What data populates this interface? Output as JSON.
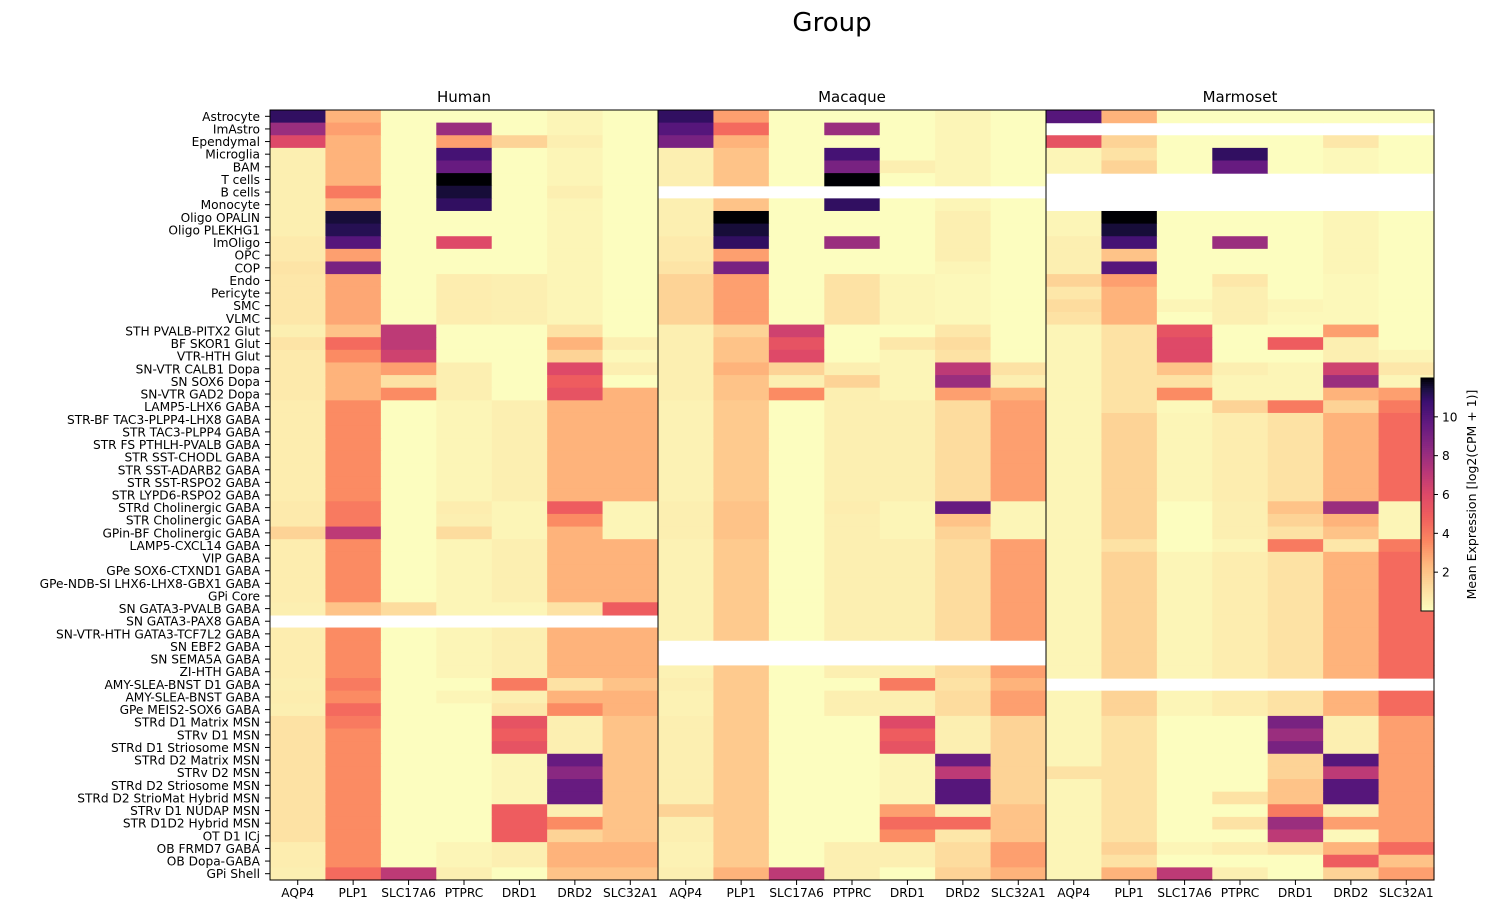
{
  "chart_data": {
    "type": "heatmap",
    "title": "Group",
    "panels": [
      "Human",
      "Macaque",
      "Marmoset"
    ],
    "genes": [
      "AQP4",
      "PLP1",
      "SLC17A6",
      "PTPRC",
      "DRD1",
      "DRD2",
      "SLC32A1"
    ],
    "cell_types": [
      "Astrocyte",
      "ImAstro",
      "Ependymal",
      "Microglia",
      "BAM",
      "T cells",
      "B cells",
      "Monocyte",
      "Oligo OPALIN",
      "Oligo PLEKHG1",
      "ImOligo",
      "OPC",
      "COP",
      "Endo",
      "Pericyte",
      "SMC",
      "VLMC",
      "STH PVALB-PITX2 Glut",
      "BF SKOR1 Glut",
      "VTR-HTH Glut",
      "SN-VTR CALB1 Dopa",
      "SN SOX6 Dopa",
      "SN-VTR GAD2 Dopa",
      "LAMP5-LHX6 GABA",
      "STR-BF TAC3-PLPP4-LHX8 GABA",
      "STR TAC3-PLPP4 GABA",
      "STR FS PTHLH-PVALB GABA",
      "STR SST-CHODL GABA",
      "STR SST-ADARB2 GABA",
      "STR SST-RSPO2 GABA",
      "STR LYPD6-RSPO2 GABA",
      "STRd Cholinergic GABA",
      "STR Cholinergic GABA",
      "GPin-BF Cholinergic GABA",
      "LAMP5-CXCL14 GABA",
      "VIP GABA",
      "GPe SOX6-CTXND1 GABA",
      "GPe-NDB-SI LHX6-LHX8-GBX1 GABA",
      "GPi Core",
      "SN GATA3-PVALB GABA",
      "SN GATA3-PAX8 GABA",
      "SN-VTR-HTH GATA3-TCF7L2 GABA",
      "SN EBF2 GABA",
      "SN SEMA5A GABA",
      "ZI-HTH GABA",
      "AMY-SLEA-BNST D1 GABA",
      "AMY-SLEA-BNST GABA",
      "GPe MEIS2-SOX6 GABA",
      "STRd D1 Matrix MSN",
      "STRv D1 MSN",
      "STRd D1 Striosome MSN",
      "STRd D2 Matrix MSN",
      "STRv D2 MSN",
      "STRd D2 Striosome MSN",
      "STRd D2 StrioMat Hybrid MSN",
      "STRv D1 NUDAP MSN",
      "STR D1D2 Hybrid MSN",
      "OT D1 ICj",
      "OB FRMD7 GABA",
      "OB Dopa-GABA",
      "GPi Shell"
    ],
    "missing_rows": {
      "Human": [
        "SN GATA3-PAX8 GABA"
      ],
      "Macaque": [
        "B cells",
        "SN EBF2 GABA",
        "SN SEMA5A GABA"
      ],
      "Marmoset": [
        "ImAstro",
        "T cells",
        "B cells",
        "Monocyte",
        "AMY-SLEA-BNST D1 GABA"
      ]
    },
    "colorbar": {
      "label": "Mean Expression [log2(CPM + 1)]",
      "ticks": [
        2,
        4,
        6,
        8,
        10
      ],
      "range": [
        0,
        12
      ],
      "colormap": "magma_r"
    },
    "overrides": {
      "Human": {
        "Astrocyte": [
          11,
          2.5,
          0,
          0,
          0,
          0.3,
          0
        ],
        "ImAstro": [
          8,
          3,
          0,
          8,
          0,
          0.3,
          0
        ],
        "Ependymal": [
          6,
          2.5,
          0,
          3,
          1.5,
          0.5,
          0
        ],
        "Microglia": [
          0.5,
          2.5,
          0,
          10.5,
          0,
          0.3,
          0
        ],
        "BAM": [
          0.5,
          2.5,
          0,
          9.5,
          0,
          0.3,
          0
        ],
        "T cells": [
          0.5,
          2.5,
          0,
          12,
          0,
          0.3,
          0
        ],
        "B cells": [
          0.5,
          4,
          0,
          11.5,
          0,
          0.5,
          0
        ],
        "Monocyte": [
          0.5,
          2.5,
          0,
          11,
          0,
          0.3,
          0
        ],
        "Oligo OPALIN": [
          0.5,
          11.5,
          0,
          0,
          0,
          0.3,
          0
        ],
        "Oligo PLEKHG1": [
          0.5,
          11.2,
          0,
          0,
          0,
          0.3,
          0
        ],
        "ImOligo": [
          0.7,
          10,
          0,
          6,
          0,
          0.3,
          0
        ],
        "OPC": [
          0.7,
          3,
          0,
          0,
          0,
          0.3,
          0
        ],
        "COP": [
          0.9,
          9,
          0,
          0,
          0,
          0.3,
          0
        ],
        "STH PVALB-PITX2 Glut": [
          0.5,
          2,
          7,
          0,
          0,
          1,
          0
        ],
        "BF SKOR1 Glut": [
          0.9,
          4.5,
          7,
          0,
          0,
          2.5,
          0.5
        ],
        "VTR-HTH Glut": [
          0.7,
          3.5,
          6.5,
          0,
          0,
          1.5,
          0.2
        ],
        "SN-VTR CALB1 Dopa": [
          0.7,
          2.5,
          3,
          0.5,
          0,
          6,
          0.5
        ],
        "SN SOX6 Dopa": [
          0.7,
          2.5,
          1,
          0.5,
          0,
          5,
          0
        ],
        "SN-VTR GAD2 Dopa": [
          0.7,
          2.5,
          3.5,
          0.5,
          0,
          5.5,
          2.5
        ],
        "STRd Cholinergic GABA": [
          0.7,
          4,
          0,
          0.6,
          0.3,
          5,
          0.3
        ],
        "STR Cholinergic GABA": [
          0.7,
          4,
          0,
          0.5,
          0.3,
          3.5,
          0.3
        ],
        "GPin-BF Cholinergic GABA": [
          1.5,
          7,
          0,
          1.2,
          0.3,
          2.5,
          0.3
        ],
        "SN GATA3-PVALB GABA": [
          0.5,
          2,
          1.2,
          0.3,
          0.3,
          1,
          5
        ],
        "AMY-SLEA-BNST D1 GABA": [
          0.5,
          4,
          0,
          0,
          4,
          1,
          2
        ],
        "GPe MEIS2-SOX6 GABA": [
          0.5,
          4.5,
          0,
          0,
          0.8,
          3.5,
          2.5
        ],
        "STRd D1 Matrix MSN": [
          1,
          4,
          0,
          0,
          5.5,
          0.5,
          2
        ],
        "STRv D1 MSN": [
          1,
          3.5,
          0,
          0,
          5,
          0.5,
          2
        ],
        "STRd D1 Striosome MSN": [
          1,
          3.5,
          0,
          0,
          5.5,
          0.5,
          2
        ],
        "STRd D2 Matrix MSN": [
          1,
          3.5,
          0,
          0,
          0.3,
          9.5,
          2
        ],
        "STRv D2 MSN": [
          1,
          3.5,
          0,
          0,
          0.3,
          8.5,
          2
        ],
        "STRd D2 Striosome MSN": [
          1,
          3.5,
          0,
          0,
          0.3,
          9.5,
          2
        ],
        "STRd D2 StrioMat Hybrid MSN": [
          1,
          3.5,
          0,
          0,
          0.3,
          9.5,
          2
        ],
        "STRv D1 NUDAP MSN": [
          1,
          3.5,
          0,
          0,
          5,
          0.5,
          2
        ],
        "STR D1D2 Hybrid MSN": [
          1,
          3.5,
          0,
          0,
          5,
          3.5,
          2
        ],
        "OT D1 ICj": [
          1,
          3.5,
          0,
          0,
          5,
          1.5,
          2
        ],
        "GPi Shell": [
          0.5,
          4.5,
          7,
          0.5,
          0,
          2,
          2
        ]
      },
      "Macaque": {
        "Astrocyte": [
          11,
          3,
          0,
          0,
          0,
          0.3,
          0
        ],
        "ImAstro": [
          10,
          4.5,
          0,
          8,
          0,
          0.3,
          0
        ],
        "Ependymal": [
          9,
          2.5,
          0,
          0,
          0,
          0.3,
          0
        ],
        "Microglia": [
          0.5,
          2,
          0,
          10.5,
          0,
          0.3,
          0
        ],
        "BAM": [
          0.5,
          2,
          0,
          9,
          0.5,
          0.3,
          0
        ],
        "T cells": [
          0.5,
          2,
          0,
          12,
          0,
          0.3,
          0
        ],
        "Monocyte": [
          0.5,
          2,
          0,
          11,
          0,
          0.3,
          0
        ],
        "Oligo OPALIN": [
          0.5,
          12,
          0,
          0,
          0,
          0.5,
          0
        ],
        "Oligo PLEKHG1": [
          0.5,
          11.5,
          0,
          0,
          0,
          0.5,
          0
        ],
        "ImOligo": [
          0.7,
          11,
          0,
          8,
          0,
          0.5,
          0
        ],
        "OPC": [
          0.7,
          3,
          0,
          0,
          0,
          0.5,
          0
        ],
        "COP": [
          0.9,
          9,
          0,
          0,
          0,
          0.3,
          0
        ],
        "STH PVALB-PITX2 Glut": [
          0.5,
          1.5,
          6.5,
          0,
          0,
          0.8,
          0
        ],
        "BF SKOR1 Glut": [
          0.5,
          2,
          5.5,
          0,
          0.8,
          1.2,
          0
        ],
        "VTR-HTH Glut": [
          0.5,
          2,
          6,
          0,
          0.3,
          1,
          0
        ],
        "SN-VTR CALB1 Dopa": [
          0.5,
          2.5,
          1.5,
          0.5,
          0.3,
          7,
          1
        ],
        "SN SOX6 Dopa": [
          0.5,
          2,
          0.5,
          1.5,
          0.3,
          8,
          0.5
        ],
        "SN-VTR GAD2 Dopa": [
          0.5,
          2,
          3.5,
          0.5,
          0.3,
          3,
          2.5
        ],
        "STRd Cholinergic GABA": [
          0.5,
          2,
          0,
          0.6,
          0.3,
          9.5,
          0.3
        ],
        "STR Cholinergic GABA": [
          0.5,
          2,
          0,
          0.5,
          0.3,
          2,
          0.3
        ],
        "GPin-BF Cholinergic GABA": [
          0.5,
          2,
          0,
          0.5,
          0.3,
          1.5,
          0.3
        ],
        "AMY-SLEA-BNST D1 GABA": [
          0.5,
          1.8,
          0,
          0,
          4,
          1,
          2.5
        ],
        "STRd D1 Matrix MSN": [
          0.5,
          1.8,
          0,
          0,
          6,
          0.5,
          1.5
        ],
        "STRv D1 MSN": [
          0.5,
          1.8,
          0,
          0,
          5,
          0.5,
          1.5
        ],
        "STRd D1 Striosome MSN": [
          0.5,
          1.8,
          0,
          0,
          5.5,
          0.5,
          1.5
        ],
        "STRd D2 Matrix MSN": [
          0.5,
          1.8,
          0,
          0,
          0.3,
          9.5,
          1.5
        ],
        "STRv D2 MSN": [
          0.5,
          1.8,
          0,
          0,
          0.3,
          7,
          1.5
        ],
        "STRd D2 Striosome MSN": [
          0.5,
          1.8,
          0,
          0,
          0.3,
          10,
          1.5
        ],
        "STRd D2 StrioMat Hybrid MSN": [
          0.5,
          1.8,
          0,
          0,
          0.3,
          10,
          1.5
        ],
        "STRv D1 NUDAP MSN": [
          1.5,
          1.8,
          0,
          0,
          3,
          0.5,
          2
        ],
        "STR D1D2 Hybrid MSN": [
          0.5,
          1.8,
          0,
          0,
          4.5,
          4.5,
          2
        ],
        "OT D1 ICj": [
          0.5,
          1.8,
          0,
          0,
          3.5,
          0.8,
          2
        ],
        "GPi Shell": [
          0.5,
          2.5,
          7,
          0.5,
          0,
          1.5,
          2.5
        ]
      },
      "Marmoset": {
        "Astrocyte": [
          10,
          2.5,
          0,
          0,
          0,
          0,
          0
        ],
        "Ependymal": [
          5.5,
          1.5,
          0,
          0,
          0,
          0.8,
          0
        ],
        "Microglia": [
          0.3,
          1,
          0,
          11,
          0,
          0.2,
          0
        ],
        "BAM": [
          0.3,
          1.5,
          0,
          9.5,
          0,
          0.2,
          0
        ],
        "Oligo OPALIN": [
          0.3,
          12,
          0,
          0,
          0,
          0.3,
          0
        ],
        "Oligo PLEKHG1": [
          0.3,
          11.5,
          0,
          0,
          0,
          0.3,
          0
        ],
        "ImOligo": [
          0.5,
          10.5,
          0,
          8,
          0,
          0.3,
          0
        ],
        "OPC": [
          0.5,
          2,
          0,
          0,
          0,
          0.3,
          0
        ],
        "COP": [
          0.5,
          10,
          0,
          0,
          0,
          0.3,
          0
        ],
        "Endo": [
          1.5,
          3,
          0,
          0.8,
          0,
          0.2,
          0
        ],
        "Pericyte": [
          0.8,
          2.5,
          0,
          0.5,
          0,
          0.2,
          0
        ],
        "SMC": [
          1.2,
          2.5,
          0.3,
          0.5,
          0.3,
          0.2,
          0
        ],
        "STH PVALB-PITX2 Glut": [
          0.3,
          1,
          5.5,
          0,
          0,
          3,
          0
        ],
        "BF SKOR1 Glut": [
          0.3,
          1,
          6,
          0,
          5,
          0.5,
          0
        ],
        "VTR-HTH Glut": [
          0.3,
          1,
          6,
          0,
          0,
          0.5,
          0.3
        ],
        "SN-VTR CALB1 Dopa": [
          0.3,
          1,
          2,
          0.5,
          0.3,
          6.5,
          0.8
        ],
        "SN SOX6 Dopa": [
          0.3,
          1,
          1,
          0.3,
          0.3,
          8,
          0.3
        ],
        "SN-VTR GAD2 Dopa": [
          0.3,
          1,
          3.5,
          0.3,
          0.3,
          2.5,
          3
        ],
        "LAMP5-LHX6 GABA": [
          0.3,
          1,
          0.2,
          1.5,
          4,
          1.5,
          4
        ],
        "STRd Cholinergic GABA": [
          0.3,
          1.5,
          0,
          0.5,
          2,
          8,
          0.3
        ],
        "STR Cholinergic GABA": [
          0.3,
          1.5,
          0,
          0.5,
          1.5,
          2.5,
          0.3
        ],
        "GPin-BF Cholinergic GABA": [
          0.3,
          1.5,
          0,
          0.5,
          1,
          2,
          0.3
        ],
        "LAMP5-CXCL14 GABA": [
          0.3,
          1,
          0,
          0.3,
          4,
          0.8,
          4
        ],
        "STRd D1 Matrix MSN": [
          0.3,
          1,
          0,
          0,
          9,
          0.5,
          3
        ],
        "STRv D1 MSN": [
          0.3,
          1,
          0,
          0,
          8,
          0.5,
          3
        ],
        "STRd D1 Striosome MSN": [
          0.3,
          1,
          0,
          0,
          9,
          0.5,
          3
        ],
        "STRd D2 Matrix MSN": [
          0.3,
          1,
          0,
          0,
          1.5,
          10,
          3
        ],
        "STRv D2 MSN": [
          1,
          1,
          0,
          0,
          1.5,
          7,
          3
        ],
        "STRd D2 Striosome MSN": [
          0.3,
          1,
          0,
          0,
          2,
          10,
          3
        ],
        "STRd D2 StrioMat Hybrid MSN": [
          0.3,
          1,
          0,
          1,
          2,
          10,
          3
        ],
        "STRv D1 NUDAP MSN": [
          0.3,
          1,
          0,
          0,
          4,
          0.5,
          3
        ],
        "STR D1D2 Hybrid MSN": [
          0.3,
          1,
          0,
          1,
          8,
          3,
          3
        ],
        "OT D1 ICj": [
          0.3,
          1,
          0,
          0,
          7,
          0.2,
          3
        ],
        "OB Dopa-GABA": [
          0.3,
          1,
          0,
          0,
          0,
          5,
          2
        ],
        "GPi Shell": [
          0.3,
          2.5,
          7,
          0.5,
          0,
          1.5,
          3
        ]
      }
    },
    "gaba_profile": {
      "Human": [
        0.6,
        3.5,
        0,
        0.3,
        0.5,
        2.5,
        2.5
      ],
      "Macaque": [
        0.4,
        1.8,
        0,
        0.5,
        0.5,
        1.2,
        3
      ],
      "Marmoset": [
        0.3,
        1.5,
        0.3,
        0.6,
        1,
        2.5,
        4.5
      ]
    },
    "vascular_profile": {
      "Human": [
        0.8,
        2.8,
        0,
        0.6,
        0.5,
        0.3,
        0
      ],
      "Macaque": [
        1.5,
        3,
        0,
        1,
        0.3,
        0.2,
        0
      ],
      "Marmoset": [
        1,
        2.5,
        0,
        0.5,
        0.2,
        0.2,
        0
      ]
    }
  }
}
